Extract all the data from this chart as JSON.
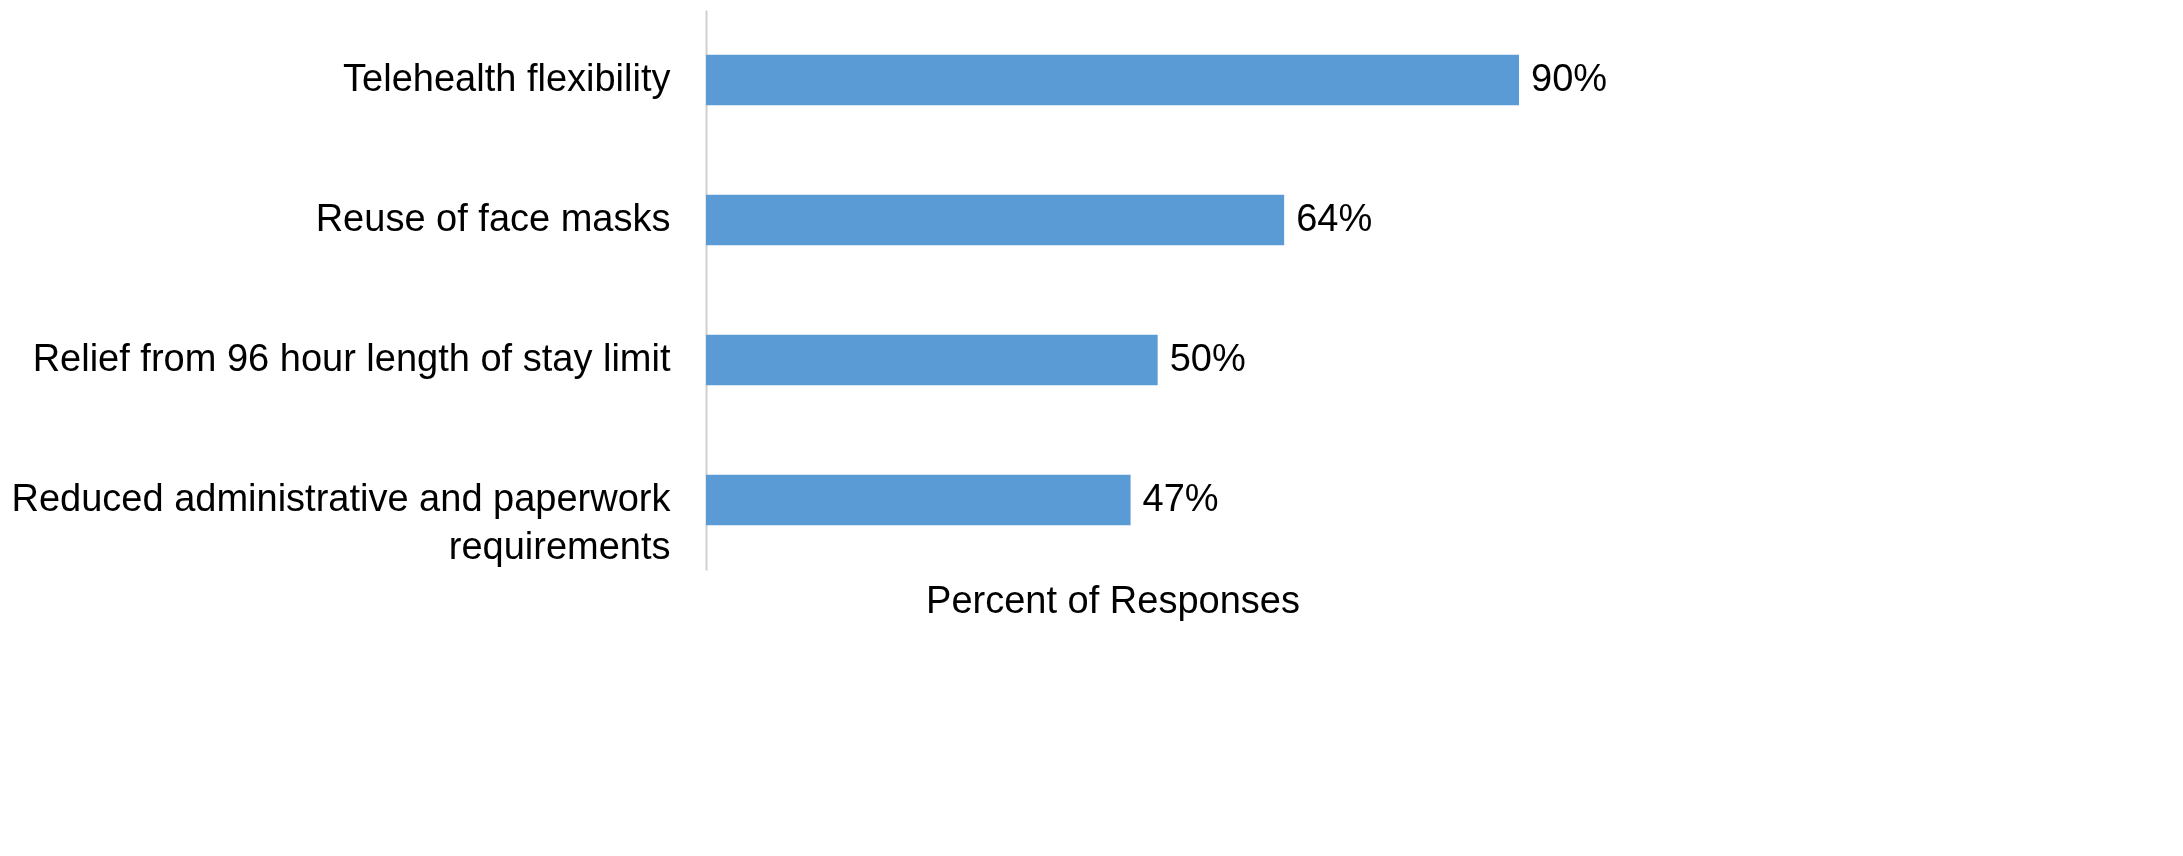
{
  "chart_data": {
    "type": "bar",
    "orientation": "horizontal",
    "xlabel": "Percent of Responses",
    "categories": [
      "Telehealth flexibility",
      "Reuse of face masks",
      "Relief from 96 hour length of stay limit",
      "Reduced administrative and paperwork requirements"
    ],
    "values": [
      90,
      64,
      50,
      47
    ],
    "color": "#5b9bd5",
    "value_labels": [
      "90%",
      "64%",
      "50%",
      "47%"
    ],
    "tick_labels": "y"
  }
}
